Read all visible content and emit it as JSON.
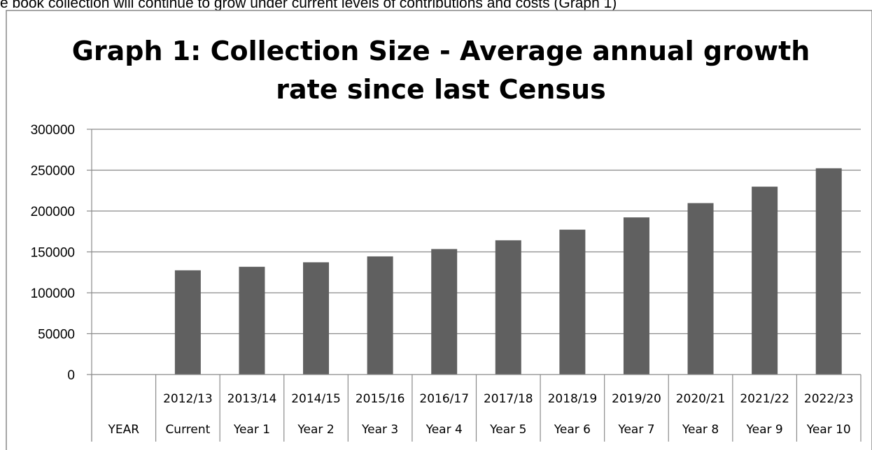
{
  "document": {
    "top_text": "e book collection will continue to grow under current levels of contributions and costs (Graph 1)"
  },
  "chart_data": {
    "type": "bar",
    "title_lines": [
      "Graph 1: Collection Size - Average annual growth",
      "rate since last Census"
    ],
    "xlabel": "",
    "ylabel": "",
    "ylim": [
      0,
      300000
    ],
    "yticks": [
      0,
      50000,
      100000,
      150000,
      200000,
      250000,
      300000
    ],
    "grid": true,
    "legend": "none",
    "bar_color": "#606060",
    "categories": [
      {
        "year": "",
        "label": "YEAR"
      },
      {
        "year": "2012/13",
        "label": "Current"
      },
      {
        "year": "2013/14",
        "label": "Year 1"
      },
      {
        "year": "2014/15",
        "label": "Year 2"
      },
      {
        "year": "2015/16",
        "label": "Year 3"
      },
      {
        "year": "2016/17",
        "label": "Year 4"
      },
      {
        "year": "2017/18",
        "label": "Year 5"
      },
      {
        "year": "2018/19",
        "label": "Year 6"
      },
      {
        "year": "2019/20",
        "label": "Year 7"
      },
      {
        "year": "2020/21",
        "label": "Year 8"
      },
      {
        "year": "2021/22",
        "label": "Year 9"
      },
      {
        "year": "2022/23",
        "label": "Year 10"
      }
    ],
    "values": [
      null,
      127500,
      131800,
      137300,
      144500,
      153500,
      164200,
      177200,
      192200,
      209700,
      229800,
      252300
    ]
  }
}
